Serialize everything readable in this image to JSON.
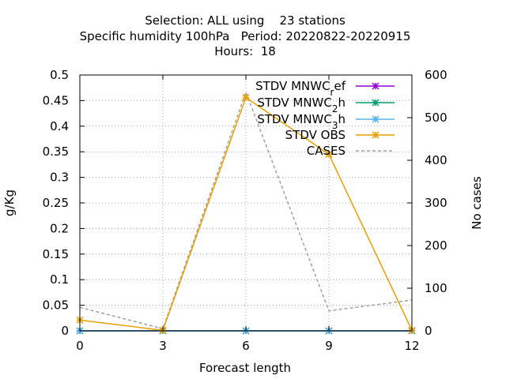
{
  "chart_data": {
    "type": "line",
    "title_lines": [
      "Selection: ALL using    23 stations",
      "Specific humidity 100hPa   Period: 20220822-20220915",
      "Hours:  18"
    ],
    "xlabel": "Forecast length",
    "ylabel": "g/Kg",
    "y2label": "No cases",
    "x": [
      0,
      3,
      6,
      9,
      12
    ],
    "xlim": [
      0,
      12
    ],
    "ylim": [
      0,
      0.5
    ],
    "y2lim": [
      0,
      600
    ],
    "x_ticks": [
      "0",
      "3",
      "6",
      "9",
      "12"
    ],
    "y_ticks": [
      "0",
      "0.05",
      "0.1",
      "0.15",
      "0.2",
      "0.25",
      "0.3",
      "0.35",
      "0.4",
      "0.45",
      "0.5"
    ],
    "y2_ticks": [
      "0",
      "100",
      "200",
      "300",
      "400",
      "500",
      "600"
    ],
    "grid": true,
    "legend_position": "top-right",
    "series": [
      {
        "name": "STDV MNWC_ref",
        "legend": [
          "STDV MNWC",
          "r",
          "ef"
        ],
        "color": "#9400d3",
        "marker": "x",
        "axis": "y",
        "values": [
          0,
          0,
          0,
          0,
          0
        ]
      },
      {
        "name": "STDV MNWC_2h",
        "legend": [
          "STDV MNWC",
          "2",
          "h"
        ],
        "color": "#009e73",
        "marker": "x",
        "axis": "y",
        "values": [
          0,
          0,
          0,
          0,
          0
        ]
      },
      {
        "name": "STDV MNWC_3h",
        "legend": [
          "STDV MNWC",
          "3",
          "h"
        ],
        "color": "#56b4e9",
        "marker": "x",
        "axis": "y",
        "values": [
          0,
          0,
          0,
          0,
          0
        ]
      },
      {
        "name": "STDV OBS",
        "legend": [
          "STDV OBS",
          "",
          ""
        ],
        "color": "#e69f00",
        "marker": "x",
        "axis": "y",
        "values": [
          0.021,
          0.001,
          0.456,
          0.345,
          0.001
        ]
      },
      {
        "name": "CASES",
        "legend": [
          "CASES",
          "",
          ""
        ],
        "color": "#a0a0a0",
        "marker": "none",
        "dashed": true,
        "axis": "y2",
        "values": [
          55,
          5,
          560,
          47,
          72
        ]
      }
    ]
  }
}
